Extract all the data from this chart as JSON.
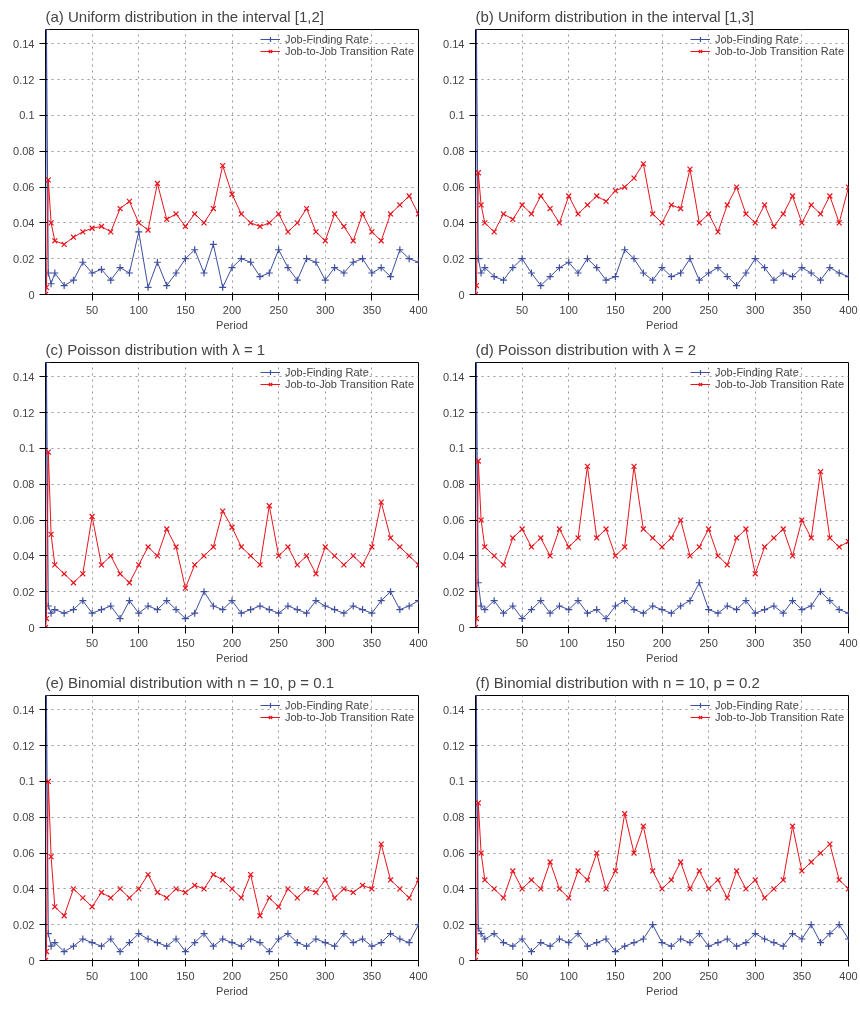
{
  "chart_data": [
    {
      "type": "line",
      "title": "(a) Uniform distribution in the interval [1,2]",
      "xlabel": "Period",
      "xlim": [
        0,
        400
      ],
      "ylim": [
        0,
        0.148
      ],
      "xticks": [
        50,
        100,
        150,
        200,
        250,
        300,
        350,
        400
      ],
      "yticks": [
        0,
        0.02,
        0.04,
        0.06,
        0.08,
        0.1,
        0.12,
        0.14
      ],
      "grid": true,
      "legend": "top right",
      "x": [
        0,
        1,
        3,
        6,
        10,
        20,
        30,
        40,
        50,
        60,
        70,
        80,
        90,
        100,
        110,
        120,
        130,
        140,
        150,
        160,
        170,
        180,
        190,
        200,
        210,
        220,
        230,
        240,
        250,
        260,
        270,
        280,
        290,
        300,
        310,
        320,
        330,
        340,
        350,
        360,
        370,
        380,
        390,
        400
      ],
      "series": [
        {
          "name": "Job-Finding Rate",
          "color": "#3f4fa0",
          "marker": "cross",
          "values": [
            0,
            0.148,
            0.012,
            0.006,
            0.012,
            0.005,
            0.008,
            0.018,
            0.012,
            0.014,
            0.008,
            0.015,
            0.012,
            0.035,
            0.004,
            0.018,
            0.005,
            0.012,
            0.02,
            0.025,
            0.012,
            0.028,
            0.004,
            0.015,
            0.02,
            0.018,
            0.01,
            0.012,
            0.025,
            0.015,
            0.008,
            0.02,
            0.018,
            0.008,
            0.015,
            0.012,
            0.018,
            0.02,
            0.012,
            0.015,
            0.01,
            0.025,
            0.02,
            0.018
          ]
        },
        {
          "name": "Job-to-Job Transition Rate",
          "color": "#e8141c",
          "marker": "x",
          "values": [
            0,
            0.004,
            0.064,
            0.04,
            0.03,
            0.028,
            0.032,
            0.035,
            0.037,
            0.038,
            0.035,
            0.048,
            0.052,
            0.04,
            0.036,
            0.062,
            0.042,
            0.045,
            0.038,
            0.045,
            0.04,
            0.048,
            0.072,
            0.056,
            0.045,
            0.04,
            0.038,
            0.04,
            0.045,
            0.035,
            0.04,
            0.048,
            0.035,
            0.03,
            0.045,
            0.038,
            0.03,
            0.045,
            0.035,
            0.03,
            0.045,
            0.05,
            0.055,
            0.045
          ]
        }
      ]
    },
    {
      "type": "line",
      "title": "(b) Uniform distribution in the interval [1,3]",
      "xlabel": "Period",
      "xlim": [
        0,
        400
      ],
      "ylim": [
        0,
        0.148
      ],
      "xticks": [
        50,
        100,
        150,
        200,
        250,
        300,
        350,
        400
      ],
      "yticks": [
        0,
        0.02,
        0.04,
        0.06,
        0.08,
        0.1,
        0.12,
        0.14
      ],
      "grid": true,
      "legend": "top right",
      "x": [
        0,
        1,
        3,
        6,
        10,
        20,
        30,
        40,
        50,
        60,
        70,
        80,
        90,
        100,
        110,
        120,
        130,
        140,
        150,
        160,
        170,
        180,
        190,
        200,
        210,
        220,
        230,
        240,
        250,
        260,
        270,
        280,
        290,
        300,
        310,
        320,
        330,
        340,
        350,
        360,
        370,
        380,
        390,
        400
      ],
      "series": [
        {
          "name": "Job-Finding Rate",
          "color": "#3f4fa0",
          "marker": "cross",
          "values": [
            0,
            0.148,
            0.02,
            0.012,
            0.015,
            0.01,
            0.008,
            0.015,
            0.02,
            0.012,
            0.005,
            0.01,
            0.015,
            0.018,
            0.012,
            0.02,
            0.015,
            0.008,
            0.01,
            0.025,
            0.02,
            0.012,
            0.008,
            0.015,
            0.01,
            0.012,
            0.02,
            0.008,
            0.012,
            0.015,
            0.01,
            0.005,
            0.012,
            0.02,
            0.015,
            0.008,
            0.012,
            0.01,
            0.015,
            0.012,
            0.008,
            0.015,
            0.012,
            0.01
          ]
        },
        {
          "name": "Job-to-Job Transition Rate",
          "color": "#e8141c",
          "marker": "x",
          "values": [
            0,
            0.005,
            0.068,
            0.05,
            0.04,
            0.035,
            0.045,
            0.042,
            0.05,
            0.045,
            0.055,
            0.048,
            0.04,
            0.055,
            0.045,
            0.05,
            0.055,
            0.052,
            0.058,
            0.06,
            0.065,
            0.073,
            0.045,
            0.04,
            0.05,
            0.048,
            0.07,
            0.04,
            0.045,
            0.035,
            0.05,
            0.06,
            0.045,
            0.04,
            0.05,
            0.038,
            0.045,
            0.055,
            0.04,
            0.05,
            0.045,
            0.055,
            0.04,
            0.06
          ]
        }
      ]
    },
    {
      "type": "line",
      "title": "(c) Poisson distribution with λ = 1",
      "xlabel": "Period",
      "xlim": [
        0,
        400
      ],
      "ylim": [
        0,
        0.148
      ],
      "xticks": [
        50,
        100,
        150,
        200,
        250,
        300,
        350,
        400
      ],
      "yticks": [
        0,
        0.02,
        0.04,
        0.06,
        0.08,
        0.1,
        0.12,
        0.14
      ],
      "grid": true,
      "legend": "top right",
      "x": [
        0,
        1,
        3,
        6,
        10,
        20,
        30,
        40,
        50,
        60,
        70,
        80,
        90,
        100,
        110,
        120,
        130,
        140,
        150,
        160,
        170,
        180,
        190,
        200,
        210,
        220,
        230,
        240,
        250,
        260,
        270,
        280,
        290,
        300,
        310,
        320,
        330,
        340,
        350,
        360,
        370,
        380,
        390,
        400
      ],
      "series": [
        {
          "name": "Job-Finding Rate",
          "color": "#3f4fa0",
          "marker": "cross",
          "values": [
            0,
            0.148,
            0.012,
            0.008,
            0.01,
            0.008,
            0.01,
            0.015,
            0.008,
            0.01,
            0.012,
            0.005,
            0.015,
            0.008,
            0.012,
            0.01,
            0.015,
            0.01,
            0.005,
            0.008,
            0.02,
            0.012,
            0.01,
            0.015,
            0.008,
            0.01,
            0.012,
            0.01,
            0.008,
            0.012,
            0.01,
            0.008,
            0.015,
            0.012,
            0.01,
            0.008,
            0.012,
            0.01,
            0.008,
            0.015,
            0.02,
            0.01,
            0.012,
            0.015
          ]
        },
        {
          "name": "Job-to-Job Transition Rate",
          "color": "#e8141c",
          "marker": "x",
          "values": [
            0,
            0.005,
            0.098,
            0.052,
            0.035,
            0.03,
            0.025,
            0.03,
            0.062,
            0.035,
            0.04,
            0.03,
            0.025,
            0.035,
            0.045,
            0.04,
            0.055,
            0.045,
            0.022,
            0.035,
            0.04,
            0.045,
            0.065,
            0.056,
            0.045,
            0.04,
            0.035,
            0.068,
            0.04,
            0.045,
            0.035,
            0.04,
            0.03,
            0.045,
            0.04,
            0.035,
            0.04,
            0.035,
            0.045,
            0.07,
            0.05,
            0.045,
            0.04,
            0.035
          ]
        }
      ]
    },
    {
      "type": "line",
      "title": "(d) Poisson distribution with λ = 2",
      "xlabel": "Period",
      "xlim": [
        0,
        400
      ],
      "ylim": [
        0,
        0.148
      ],
      "xticks": [
        50,
        100,
        150,
        200,
        250,
        300,
        350,
        400
      ],
      "yticks": [
        0,
        0.02,
        0.04,
        0.06,
        0.08,
        0.1,
        0.12,
        0.14
      ],
      "grid": true,
      "legend": "top right",
      "x": [
        0,
        1,
        3,
        6,
        10,
        20,
        30,
        40,
        50,
        60,
        70,
        80,
        90,
        100,
        110,
        120,
        130,
        140,
        150,
        160,
        170,
        180,
        190,
        200,
        210,
        220,
        230,
        240,
        250,
        260,
        270,
        280,
        290,
        300,
        310,
        320,
        330,
        340,
        350,
        360,
        370,
        380,
        390,
        400
      ],
      "series": [
        {
          "name": "Job-Finding Rate",
          "color": "#3f4fa0",
          "marker": "cross",
          "values": [
            0,
            0.148,
            0.025,
            0.012,
            0.01,
            0.015,
            0.008,
            0.012,
            0.005,
            0.01,
            0.015,
            0.008,
            0.012,
            0.01,
            0.015,
            0.008,
            0.01,
            0.005,
            0.012,
            0.015,
            0.01,
            0.008,
            0.012,
            0.01,
            0.008,
            0.012,
            0.015,
            0.025,
            0.01,
            0.008,
            0.012,
            0.01,
            0.015,
            0.008,
            0.01,
            0.012,
            0.008,
            0.015,
            0.01,
            0.012,
            0.02,
            0.015,
            0.01,
            0.008
          ]
        },
        {
          "name": "Job-to-Job Transition Rate",
          "color": "#e8141c",
          "marker": "x",
          "values": [
            0,
            0.005,
            0.093,
            0.06,
            0.045,
            0.04,
            0.035,
            0.05,
            0.055,
            0.045,
            0.05,
            0.04,
            0.055,
            0.045,
            0.05,
            0.09,
            0.05,
            0.055,
            0.04,
            0.045,
            0.09,
            0.055,
            0.05,
            0.045,
            0.05,
            0.06,
            0.04,
            0.045,
            0.055,
            0.04,
            0.035,
            0.05,
            0.055,
            0.03,
            0.045,
            0.05,
            0.055,
            0.04,
            0.06,
            0.05,
            0.087,
            0.05,
            0.045,
            0.048
          ]
        }
      ]
    },
    {
      "type": "line",
      "title": "(e) Binomial distribution with n = 10, p = 0.1",
      "xlabel": "Period",
      "xlim": [
        0,
        400
      ],
      "ylim": [
        0,
        0.148
      ],
      "xticks": [
        50,
        100,
        150,
        200,
        250,
        300,
        350,
        400
      ],
      "yticks": [
        0,
        0.02,
        0.04,
        0.06,
        0.08,
        0.1,
        0.12,
        0.14
      ],
      "grid": true,
      "legend": "top right",
      "x": [
        0,
        1,
        3,
        6,
        10,
        20,
        30,
        40,
        50,
        60,
        70,
        80,
        90,
        100,
        110,
        120,
        130,
        140,
        150,
        160,
        170,
        180,
        190,
        200,
        210,
        220,
        230,
        240,
        250,
        260,
        270,
        280,
        290,
        300,
        310,
        320,
        330,
        340,
        350,
        360,
        370,
        380,
        390,
        400
      ],
      "series": [
        {
          "name": "Job-Finding Rate",
          "color": "#3f4fa0",
          "marker": "cross",
          "values": [
            0,
            0.148,
            0.015,
            0.008,
            0.01,
            0.005,
            0.008,
            0.012,
            0.01,
            0.008,
            0.012,
            0.005,
            0.01,
            0.015,
            0.012,
            0.01,
            0.008,
            0.012,
            0.005,
            0.01,
            0.015,
            0.008,
            0.012,
            0.01,
            0.008,
            0.012,
            0.01,
            0.005,
            0.012,
            0.015,
            0.01,
            0.008,
            0.012,
            0.01,
            0.008,
            0.015,
            0.01,
            0.012,
            0.008,
            0.01,
            0.015,
            0.012,
            0.01,
            0.02
          ]
        },
        {
          "name": "Job-to-Job Transition Rate",
          "color": "#e8141c",
          "marker": "x",
          "values": [
            0,
            0.005,
            0.1,
            0.058,
            0.03,
            0.025,
            0.04,
            0.035,
            0.03,
            0.038,
            0.035,
            0.04,
            0.035,
            0.04,
            0.048,
            0.038,
            0.035,
            0.04,
            0.038,
            0.042,
            0.04,
            0.048,
            0.045,
            0.04,
            0.035,
            0.048,
            0.025,
            0.035,
            0.03,
            0.04,
            0.035,
            0.04,
            0.038,
            0.045,
            0.035,
            0.04,
            0.038,
            0.042,
            0.04,
            0.065,
            0.045,
            0.04,
            0.035,
            0.045
          ]
        }
      ]
    },
    {
      "type": "line",
      "title": "(f) Binomial distribution with n = 10, p = 0.2",
      "xlabel": "Period",
      "xlim": [
        0,
        400
      ],
      "ylim": [
        0,
        0.148
      ],
      "xticks": [
        50,
        100,
        150,
        200,
        250,
        300,
        350,
        400
      ],
      "yticks": [
        0,
        0.02,
        0.04,
        0.06,
        0.08,
        0.1,
        0.12,
        0.14
      ],
      "grid": true,
      "legend": "top right",
      "x": [
        0,
        1,
        3,
        6,
        10,
        20,
        30,
        40,
        50,
        60,
        70,
        80,
        90,
        100,
        110,
        120,
        130,
        140,
        150,
        160,
        170,
        180,
        190,
        200,
        210,
        220,
        230,
        240,
        250,
        260,
        270,
        280,
        290,
        300,
        310,
        320,
        330,
        340,
        350,
        360,
        370,
        380,
        390,
        400
      ],
      "series": [
        {
          "name": "Job-Finding Rate",
          "color": "#3f4fa0",
          "marker": "cross",
          "values": [
            0,
            0.148,
            0.018,
            0.015,
            0.012,
            0.015,
            0.01,
            0.008,
            0.012,
            0.005,
            0.01,
            0.008,
            0.012,
            0.01,
            0.015,
            0.008,
            0.01,
            0.012,
            0.005,
            0.008,
            0.01,
            0.012,
            0.02,
            0.01,
            0.008,
            0.012,
            0.01,
            0.015,
            0.008,
            0.01,
            0.012,
            0.008,
            0.01,
            0.015,
            0.012,
            0.01,
            0.008,
            0.015,
            0.012,
            0.02,
            0.01,
            0.015,
            0.02,
            0.012
          ]
        },
        {
          "name": "Job-to-Job Transition Rate",
          "color": "#e8141c",
          "marker": "x",
          "values": [
            0,
            0.005,
            0.088,
            0.06,
            0.045,
            0.04,
            0.035,
            0.05,
            0.04,
            0.045,
            0.04,
            0.055,
            0.04,
            0.035,
            0.05,
            0.045,
            0.06,
            0.04,
            0.05,
            0.082,
            0.06,
            0.075,
            0.05,
            0.04,
            0.045,
            0.055,
            0.04,
            0.05,
            0.04,
            0.045,
            0.035,
            0.05,
            0.04,
            0.045,
            0.035,
            0.04,
            0.045,
            0.075,
            0.05,
            0.055,
            0.06,
            0.065,
            0.045,
            0.04
          ]
        }
      ]
    }
  ]
}
